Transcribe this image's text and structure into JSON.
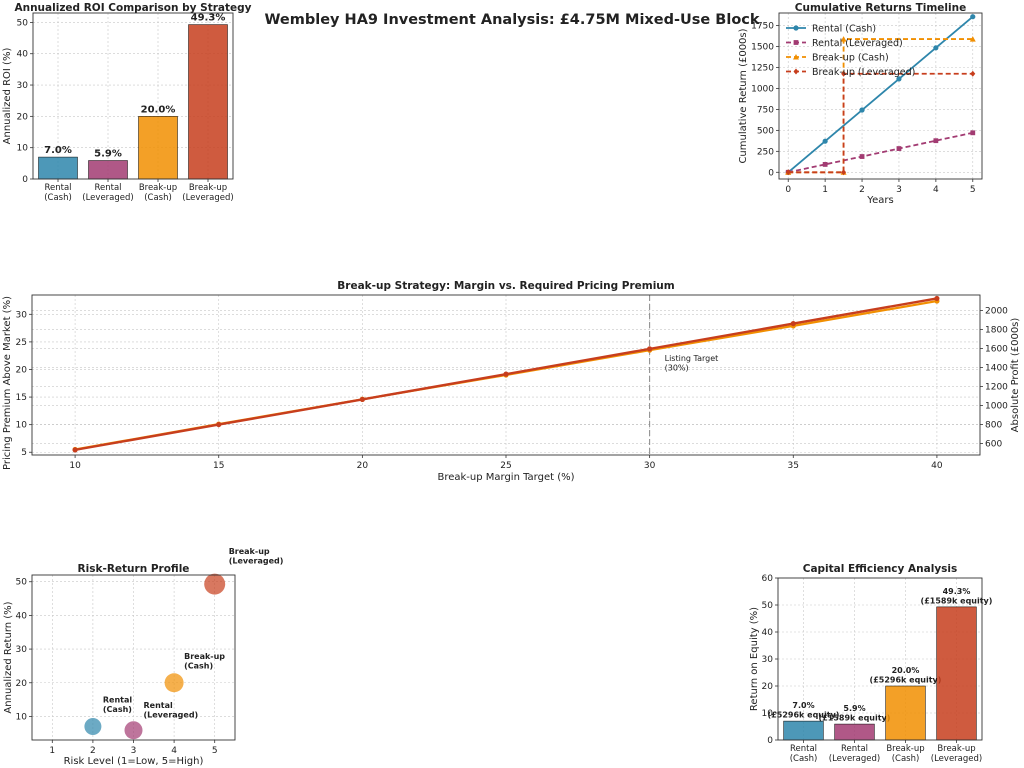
{
  "page": {
    "title": "Wembley HA9 Investment Analysis: £4.75M Mixed-Use Block"
  },
  "colors": {
    "rental_cash": "#2E86AB",
    "rental_lev": "#A23B72",
    "breakup_cash": "#F18F01",
    "breakup_lev": "#C73E1D"
  },
  "chart_data": [
    {
      "id": "roi",
      "type": "bar",
      "title": "Annualized ROI Comparison by Strategy",
      "ylabel": "Annualized ROI (%)",
      "categories": [
        "Rental\n(Cash)",
        "Rental\n(Leveraged)",
        "Break-up\n(Cash)",
        "Break-up\n(Leveraged)"
      ],
      "values": [
        7.0,
        5.9,
        20.0,
        49.3
      ],
      "data_labels": [
        "7.0%",
        "5.9%",
        "20.0%",
        "49.3%"
      ],
      "ylim": [
        0,
        53
      ],
      "yticks": [
        0,
        10,
        20,
        30,
        40,
        50
      ],
      "grid": true
    },
    {
      "id": "cumulative",
      "type": "line",
      "title": "Cumulative Returns Timeline",
      "xlabel": "Years",
      "ylabel": "Cumulative Return (£000s)",
      "xlim": [
        -0.25,
        5.25
      ],
      "ylim": [
        -80,
        1900
      ],
      "xticks": [
        0,
        1,
        2,
        3,
        4,
        5
      ],
      "yticks": [
        0,
        250,
        500,
        750,
        1000,
        1250,
        1500,
        1750
      ],
      "legend": "top-left",
      "grid": true,
      "series": [
        {
          "name": "Rental (Cash)",
          "style": "solid",
          "marker": "circle",
          "points": [
            [
              0,
              0
            ],
            [
              1,
              371
            ],
            [
              2,
              743
            ],
            [
              3,
              1114
            ],
            [
              4,
              1485
            ],
            [
              5,
              1856
            ]
          ]
        },
        {
          "name": "Rental (Leveraged)",
          "style": "dashed",
          "marker": "square",
          "points": [
            [
              0,
              0
            ],
            [
              1,
              94
            ],
            [
              2,
              188
            ],
            [
              3,
              283
            ],
            [
              4,
              377
            ],
            [
              5,
              471
            ]
          ]
        },
        {
          "name": "Break-up (Cash)",
          "style": "dashed",
          "marker": "triangle",
          "points": [
            [
              0,
              0
            ],
            [
              1.5,
              0
            ],
            [
              1.5,
              1589
            ],
            [
              5,
              1589
            ]
          ]
        },
        {
          "name": "Break-up (Leveraged)",
          "style": "dashed",
          "marker": "diamond",
          "points": [
            [
              0,
              0
            ],
            [
              1.5,
              0
            ],
            [
              1.5,
              1175
            ],
            [
              5,
              1175
            ]
          ]
        }
      ]
    },
    {
      "id": "margin",
      "type": "line",
      "title": "Break-up Strategy: Margin vs. Required Pricing Premium",
      "xlabel": "Break-up Margin Target (%)",
      "ylabel": "Pricing Premium Above Market (%)",
      "ylabel_right": "Absolute Profit (£000s)",
      "xlim": [
        8.5,
        41.5
      ],
      "ylim": [
        4.5,
        33.5
      ],
      "xticks": [
        10,
        15,
        20,
        25,
        30,
        35,
        40
      ],
      "yticks": [
        5,
        10,
        15,
        20,
        25,
        30
      ],
      "ylim_right": [
        478,
        2162
      ],
      "yticks_right": [
        600,
        800,
        1000,
        1200,
        1400,
        1600,
        1800,
        2000
      ],
      "grid": true,
      "x": [
        10,
        15,
        20,
        25,
        30,
        35,
        40
      ],
      "premium": [
        5.5,
        10.1,
        14.6,
        19.0,
        23.5,
        27.9,
        32.4
      ],
      "profit": [
        532,
        798,
        1063,
        1329,
        1595,
        1861,
        2126
      ],
      "annotation": {
        "x": 30,
        "text": "Listing Target\n(30%)"
      }
    },
    {
      "id": "risk",
      "type": "scatter",
      "title": "Risk-Return Profile",
      "xlabel": "Risk Level (1=Low, 5=High)",
      "ylabel": "Annualized Return (%)",
      "xlim": [
        0.5,
        5.5
      ],
      "ylim": [
        3,
        52
      ],
      "xticks": [
        1,
        2,
        3,
        4,
        5
      ],
      "yticks": [
        10,
        20,
        30,
        40,
        50
      ],
      "grid": true,
      "points": [
        {
          "label": "Rental\n(Cash)",
          "x": 2,
          "y": 7.0,
          "size": 15
        },
        {
          "label": "Rental\n(Leveraged)",
          "x": 3,
          "y": 5.9,
          "size": 16
        },
        {
          "label": "Break-up\n(Cash)",
          "x": 4,
          "y": 20.0,
          "size": 17
        },
        {
          "label": "Break-up\n(Leveraged)",
          "x": 5,
          "y": 49.3,
          "size": 19
        }
      ]
    },
    {
      "id": "capital",
      "type": "bar",
      "title": "Capital Efficiency Analysis",
      "ylabel": "Return on Equity (%)",
      "categories": [
        "Rental\n(Cash)",
        "Rental\n(Leveraged)",
        "Break-up\n(Cash)",
        "Break-up\n(Leveraged)"
      ],
      "values": [
        7.0,
        5.9,
        20.0,
        49.3
      ],
      "data_labels": [
        "7.0%\n(£5296k equity)",
        "5.9%\n(£1589k equity)",
        "20.0%\n(£5296k equity)",
        "49.3%\n(£1589k equity)"
      ],
      "ylim": [
        0,
        60
      ],
      "yticks": [
        0,
        10,
        20,
        30,
        40,
        50,
        60
      ],
      "grid": true
    }
  ]
}
